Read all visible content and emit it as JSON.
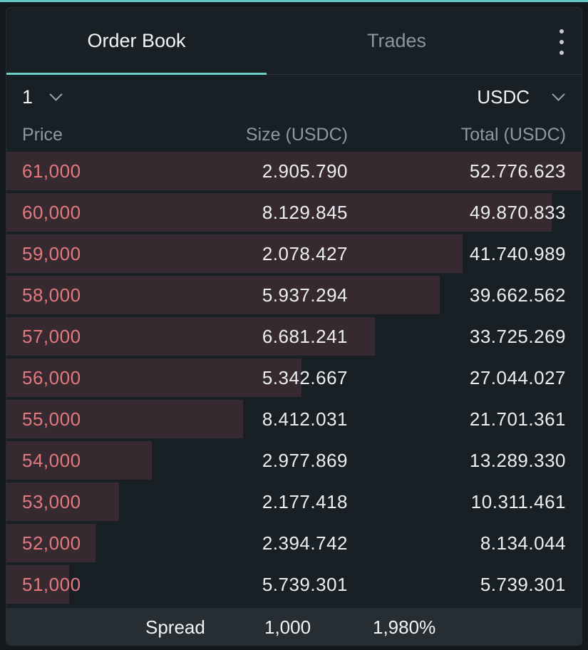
{
  "tabs": [
    {
      "label": "Order Book",
      "active": true
    },
    {
      "label": "Trades",
      "active": false
    }
  ],
  "menu": {
    "icon": "more-vertical-icon"
  },
  "controls": {
    "grouping": "1",
    "currency": "USDC"
  },
  "header": {
    "price": "Price",
    "size": "Size (USDC)",
    "total": "Total (USDC)"
  },
  "orders": [
    {
      "price": "61,000",
      "size": "2.905.790",
      "total": "52.776.623",
      "depth": 1.0
    },
    {
      "price": "60,000",
      "size": "8.129.845",
      "total": "49.870.833",
      "depth": 0.945
    },
    {
      "price": "59,000",
      "size": "2.078.427",
      "total": "41.740.989",
      "depth": 0.791
    },
    {
      "price": "58,000",
      "size": "5.937.294",
      "total": "39.662.562",
      "depth": 0.752
    },
    {
      "price": "57,000",
      "size": "6.681.241",
      "total": "33.725.269",
      "depth": 0.639
    },
    {
      "price": "56,000",
      "size": "5.342.667",
      "total": "27.044.027",
      "depth": 0.512
    },
    {
      "price": "55,000",
      "size": "8.412.031",
      "total": "21.701.361",
      "depth": 0.411
    },
    {
      "price": "54,000",
      "size": "2.977.869",
      "total": "13.289.330",
      "depth": 0.252
    },
    {
      "price": "53,000",
      "size": "2.177.418",
      "total": "10.311.461",
      "depth": 0.195
    },
    {
      "price": "52,000",
      "size": "2.394.742",
      "total": "8.134.044",
      "depth": 0.154
    },
    {
      "price": "51,000",
      "size": "5.739.301",
      "total": "5.739.301",
      "depth": 0.109
    }
  ],
  "spread": {
    "label": "Spread",
    "value": "1,000",
    "percent": "1,980%"
  },
  "colors": {
    "accent": "#6fd0c8",
    "ask_price": "#e2797f",
    "ask_depth": "#362a30"
  }
}
